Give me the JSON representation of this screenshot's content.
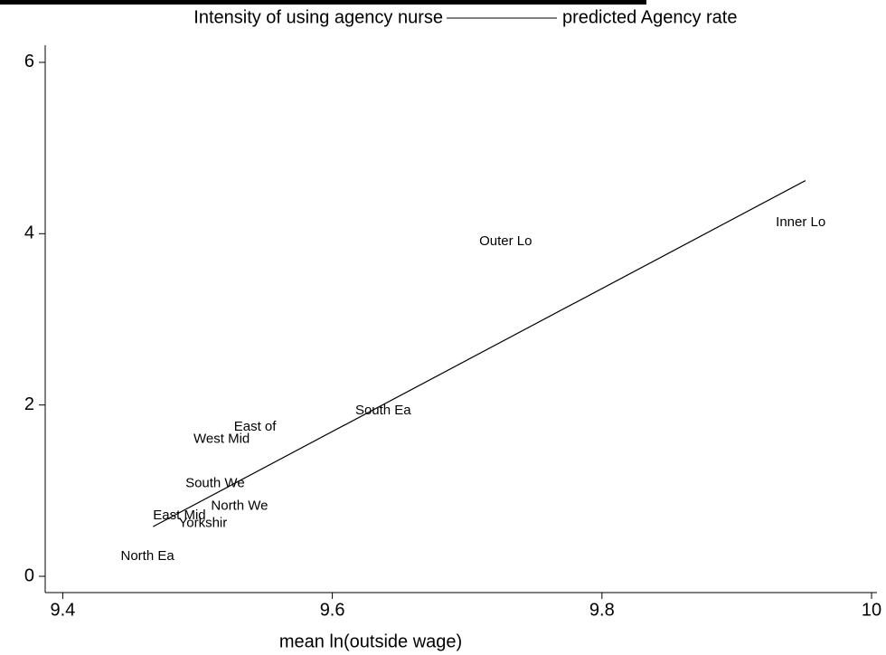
{
  "chart_data": {
    "type": "scatter",
    "x_label": "mean ln(outside wage)",
    "xlim": [
      9.387,
      10.004
    ],
    "xticks": [
      9.4,
      9.6,
      9.8,
      10
    ],
    "ylim": [
      -0.19,
      6.2
    ],
    "yticks": [
      0,
      2,
      4,
      6
    ],
    "series": [
      {
        "name": "Intensity of using agency nurse",
        "type": "scatter",
        "color": "#000000",
        "x": [
          9.443,
          9.486,
          9.467,
          9.51,
          9.491,
          9.497,
          9.527,
          9.617,
          9.709,
          9.929
        ],
        "values": [
          0.23,
          0.62,
          0.71,
          0.82,
          1.08,
          1.6,
          1.74,
          1.93,
          3.91,
          4.13
        ],
        "labels": [
          "North Ea",
          "Yorkshir",
          "East Mid",
          "North We",
          "South We",
          "West Mid",
          "East of",
          "South Ea",
          "Outer Lo",
          "Inner Lo"
        ]
      },
      {
        "name": "predicted Agency rate",
        "type": "line",
        "color": "#000000",
        "x": [
          9.467,
          9.951
        ],
        "values": [
          0.58,
          4.62
        ]
      }
    ]
  }
}
